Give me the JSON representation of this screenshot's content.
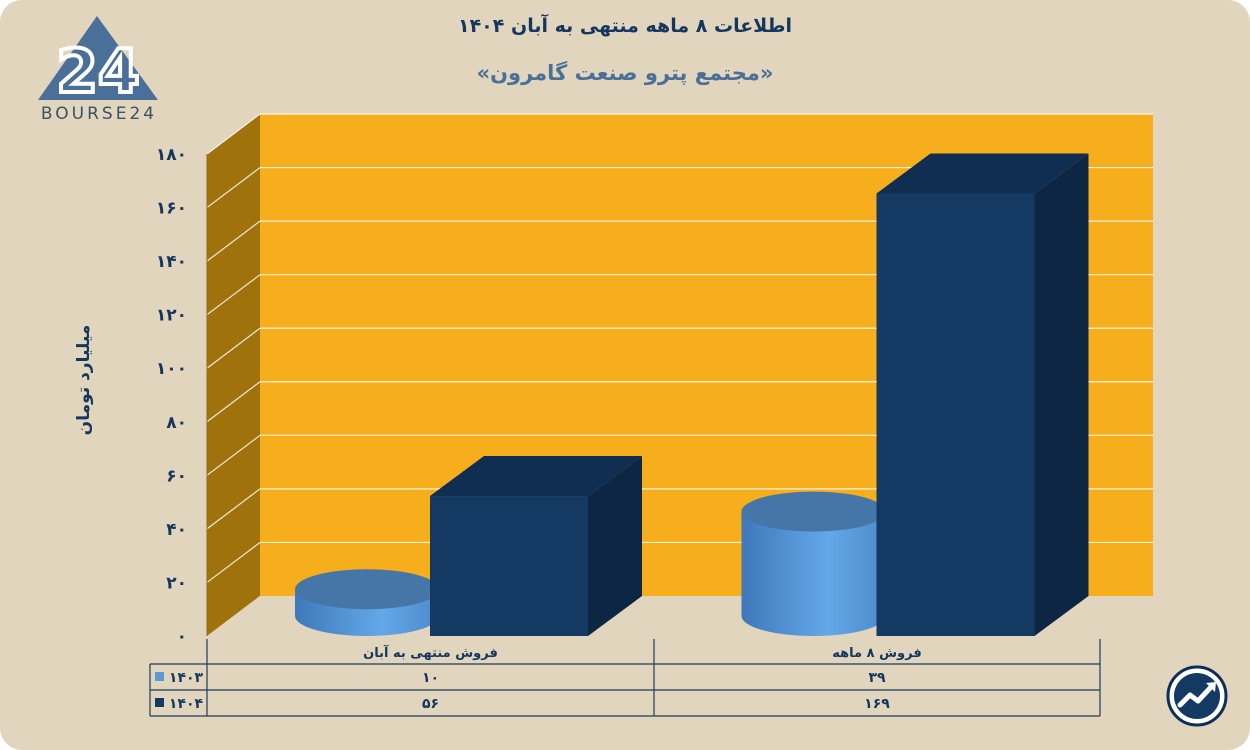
{
  "header": {
    "title": "اطلاعات ۸ ماهه منتهی به آبان ۱۴۰۴",
    "subtitle": "«مجتمع پترو صنعت گامرون»"
  },
  "brand": {
    "logo_text": "BOURSE24",
    "logo_mark": "24"
  },
  "badge": {
    "icon": "trend-up-icon"
  },
  "chart_data": {
    "type": "bar",
    "categories": [
      "فروش منتهی به  آبان",
      "فروش ۸  ماهه"
    ],
    "series": [
      {
        "name": "۱۴۰۳",
        "values": [
          10,
          39
        ],
        "color": "#5a9bd5",
        "display": [
          "۱۰",
          "۳۹"
        ]
      },
      {
        "name": "۱۴۰۴",
        "values": [
          56,
          169
        ],
        "color": "#143a64",
        "display": [
          "۵۶",
          "۱۶۹"
        ]
      }
    ],
    "ylabel": "میلیارد تومان",
    "ylim": [
      0,
      180
    ],
    "yticks": [
      0,
      20,
      40,
      60,
      80,
      100,
      120,
      140,
      160,
      180
    ],
    "ytick_labels": [
      "۰",
      "۲۰",
      "۴۰",
      "۶۰",
      "۸۰",
      "۱۰۰",
      "۱۲۰",
      "۱۴۰",
      "۱۶۰",
      "۱۸۰"
    ],
    "grid": true,
    "legend": "data-table",
    "wall_color": "#f7ae1c",
    "side_wall_color": "#a0720c"
  }
}
